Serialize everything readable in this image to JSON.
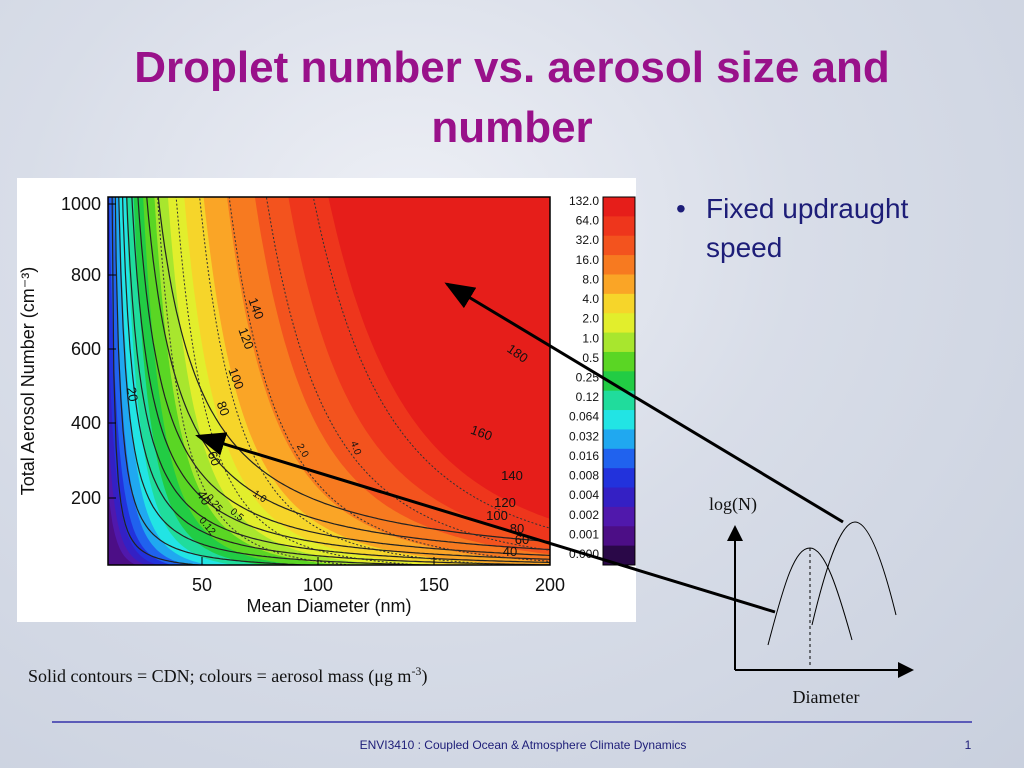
{
  "title": "Droplet number vs. aerosol size and number",
  "figure": {
    "y_axis_label": "Total Aerosol Number (cm⁻³)",
    "x_axis_label": "Mean Diameter (nm)",
    "x_ticks": [
      "50",
      "100",
      "150",
      "200"
    ],
    "y_ticks": [
      "1000",
      "800",
      "600",
      "400",
      "200"
    ],
    "colorbar_labels": [
      "132.0",
      "64.0",
      "32.0",
      "16.0",
      "8.0",
      "4.0",
      "2.0",
      "1.0",
      "0.5",
      "0.25",
      "0.12",
      "0.064",
      "0.032",
      "0.016",
      "0.008",
      "0.004",
      "0.002",
      "0.001",
      "0.000"
    ],
    "cdn_contour_labels": [
      "20",
      "40",
      "60",
      "80",
      "100",
      "120",
      "140",
      "160",
      "180",
      "140",
      "120",
      "100",
      "80",
      "60",
      "40"
    ],
    "mass_contour_labels": [
      "0.12",
      "0.25",
      "0.5",
      "1.0",
      "2.0",
      "4.0"
    ]
  },
  "bullets": [
    "Fixed updraught speed"
  ],
  "caption": {
    "text": "Solid contours = CDN; colours = aerosol mass (μg m",
    "superscript": "-3",
    "close": ")"
  },
  "diagram": {
    "y_axis_label": "log(N)",
    "x_axis_label": "Diameter"
  },
  "footer": {
    "course": "ENVI3410 : Coupled Ocean & Atmosphere Climate Dynamics",
    "page": "1"
  }
}
